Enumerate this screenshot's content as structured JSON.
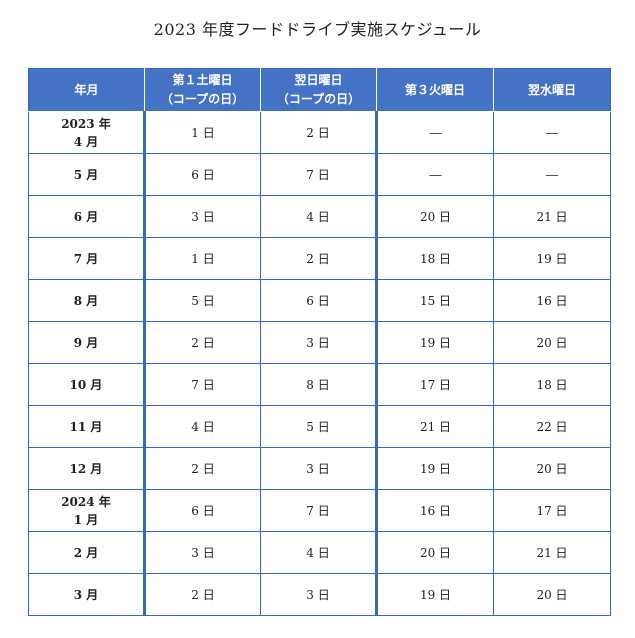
{
  "title": "2023 年度フードドライブ実施スケジュール",
  "headers": [
    [
      "年月"
    ],
    [
      "第１土曜日",
      "（コープの日）"
    ],
    [
      "翌日曜日",
      "（コープの日）"
    ],
    [
      "第３火曜日"
    ],
    [
      "翌水曜日"
    ]
  ],
  "rows": [
    {
      "month": [
        "2023 年",
        "4 月"
      ],
      "d1": "1 日",
      "d2": "2 日",
      "d3": "―",
      "d4": "―"
    },
    {
      "month": [
        "5 月"
      ],
      "d1": "6 日",
      "d2": "7 日",
      "d3": "―",
      "d4": "―"
    },
    {
      "month": [
        "6 月"
      ],
      "d1": "3 日",
      "d2": "4 日",
      "d3": "20 日",
      "d4": "21 日"
    },
    {
      "month": [
        "7 月"
      ],
      "d1": "1 日",
      "d2": "2 日",
      "d3": "18 日",
      "d4": "19 日"
    },
    {
      "month": [
        "8 月"
      ],
      "d1": "5 日",
      "d2": "6 日",
      "d3": "15 日",
      "d4": "16 日"
    },
    {
      "month": [
        "9 月"
      ],
      "d1": "2 日",
      "d2": "3 日",
      "d3": "19 日",
      "d4": "20 日"
    },
    {
      "month": [
        "10 月"
      ],
      "d1": "7 日",
      "d2": "8 日",
      "d3": "17 日",
      "d4": "18 日"
    },
    {
      "month": [
        "11 月"
      ],
      "d1": "4 日",
      "d2": "5 日",
      "d3": "21 日",
      "d4": "22 日"
    },
    {
      "month": [
        "12 月"
      ],
      "d1": "2 日",
      "d2": "3 日",
      "d3": "19 日",
      "d4": "20 日"
    },
    {
      "month": [
        "2024 年",
        "1 月"
      ],
      "d1": "6 日",
      "d2": "7 日",
      "d3": "16 日",
      "d4": "17 日"
    },
    {
      "month": [
        "2 月"
      ],
      "d1": "3 日",
      "d2": "4 日",
      "d3": "20 日",
      "d4": "21 日"
    },
    {
      "month": [
        "3 月"
      ],
      "d1": "2 日",
      "d2": "3 日",
      "d3": "19 日",
      "d4": "20 日"
    }
  ]
}
